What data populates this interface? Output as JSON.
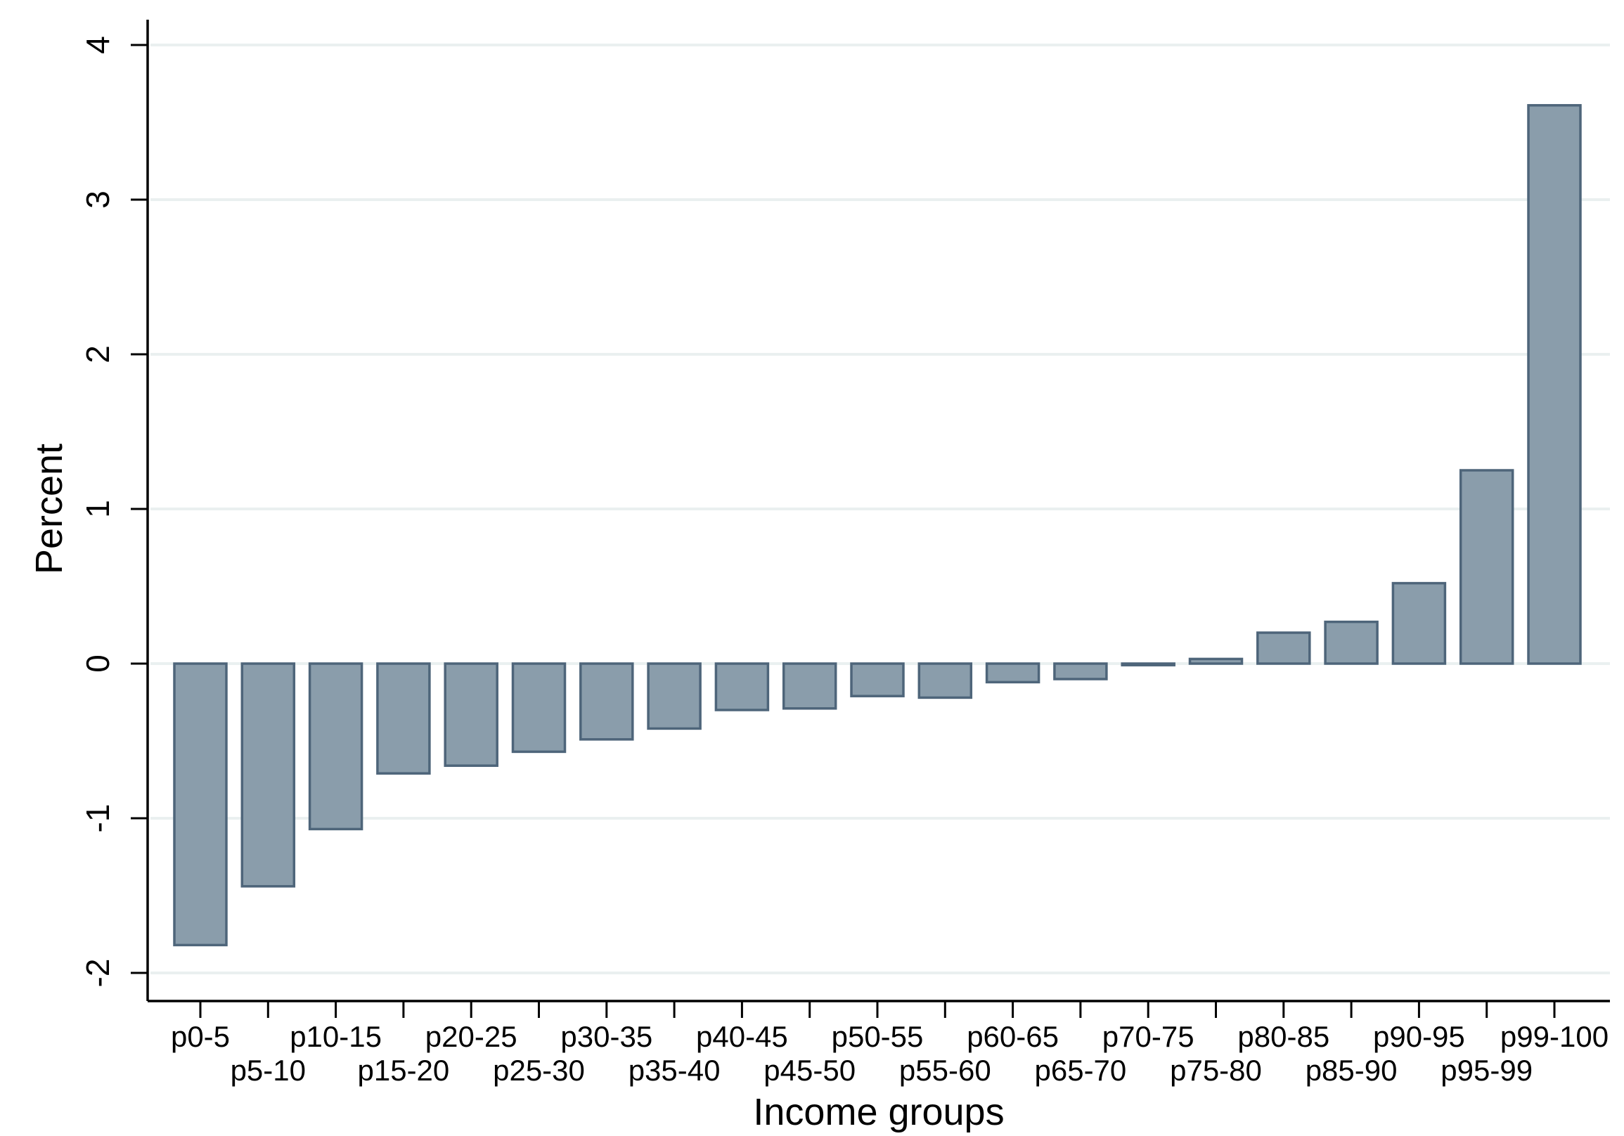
{
  "chart_data": {
    "type": "bar",
    "title": "",
    "xlabel": "Income groups",
    "ylabel": "Percent",
    "ylim": [
      -2.15,
      4.2
    ],
    "yticks": [
      -2,
      -1,
      0,
      1,
      2,
      3,
      4
    ],
    "grid": true,
    "legend": "none",
    "colors": {
      "bar_fill": "#8a9dab",
      "bar_stroke": "#4e657a",
      "grid": "#eaf0f0",
      "axis": "#000000"
    },
    "categories": [
      "p0-5",
      "p5-10",
      "p10-15",
      "p15-20",
      "p20-25",
      "p25-30",
      "p30-35",
      "p35-40",
      "p40-45",
      "p45-50",
      "p50-55",
      "p55-60",
      "p60-65",
      "p65-70",
      "p70-75",
      "p75-80",
      "p80-85",
      "p85-90",
      "p90-95",
      "p95-99",
      "p99-100"
    ],
    "values": [
      -1.82,
      -1.44,
      -1.07,
      -0.71,
      -0.66,
      -0.57,
      -0.49,
      -0.42,
      -0.3,
      -0.29,
      -0.21,
      -0.22,
      -0.12,
      -0.1,
      -0.01,
      0.03,
      0.2,
      0.27,
      0.52,
      1.25,
      3.61
    ]
  }
}
